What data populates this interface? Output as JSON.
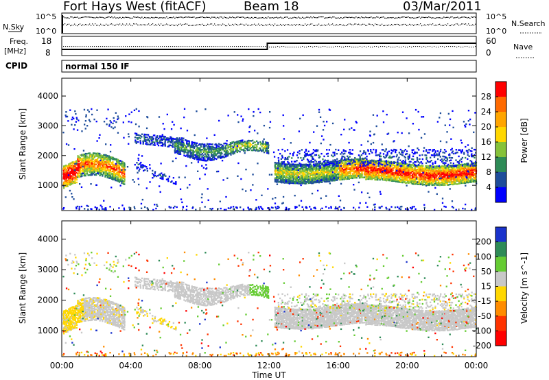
{
  "header": {
    "title": "Fort Hays West (fitACF)",
    "beam": "Beam 18",
    "date": "03/Mar/2011"
  },
  "top_panel": {
    "left_label": "N.Sky",
    "right_label": "N.Search",
    "ticks_left": [
      "10^5",
      "10^0"
    ],
    "ticks_right": [
      "10^5",
      "10^0"
    ]
  },
  "freq_panel": {
    "left_label_1": "Freq.",
    "left_label_2": "[MHz]",
    "left_ticks": [
      "18",
      "8"
    ],
    "right_ticks": [
      "60",
      "0"
    ],
    "right_label": "Nave"
  },
  "cpid_panel": {
    "label": "CPID",
    "mode": "normal 150 IF"
  },
  "x_axis": {
    "label": "Time UT",
    "ticks": [
      "00:00",
      "04:00",
      "08:00",
      "12:00",
      "16:00",
      "20:00",
      "00:00"
    ]
  },
  "chart_data": [
    {
      "type": "heatmap",
      "title": "",
      "xlabel": "Time UT",
      "ylabel": "Slant Range [km]",
      "ylim": [
        150,
        4600
      ],
      "yticks": [
        "4000",
        "3000",
        "2000",
        "1000"
      ],
      "colorbar": {
        "label": "Power [dB]",
        "ticks": [
          "28",
          "24",
          "20",
          "16",
          "12",
          "8",
          "4"
        ],
        "colors": [
          "#ff0000",
          "#ff6a00",
          "#ffa500",
          "#ffd700",
          "#86c23a",
          "#2e8b57",
          "#1e4d9b",
          "#0000ff"
        ]
      }
    },
    {
      "type": "heatmap",
      "title": "",
      "xlabel": "Time UT",
      "ylabel": "Slant Range [km]",
      "ylim": [
        150,
        4600
      ],
      "yticks": [
        "4000",
        "3000",
        "2000",
        "1000"
      ],
      "colorbar": {
        "label": "Velocity [m s^-1]",
        "ticks": [
          "200",
          "100",
          "50",
          "15",
          "-15",
          "-50",
          "-100",
          "-200"
        ],
        "colors": [
          "#1a33cc",
          "#2e8b57",
          "#66cc33",
          "#c8c8c8",
          "#ffd700",
          "#ff8c00",
          "#ff3300",
          "#ff0000"
        ]
      }
    }
  ]
}
